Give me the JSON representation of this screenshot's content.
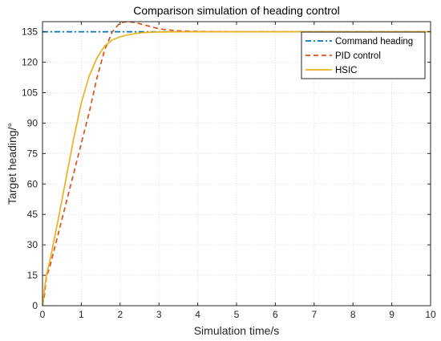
{
  "chart_data": {
    "type": "line",
    "title": "Comparison simulation of heading control",
    "xlabel": "Simulation time/s",
    "ylabel": "Target heading/°",
    "xlim": [
      0,
      10
    ],
    "ylim": [
      0,
      140
    ],
    "xticks": [
      0,
      1,
      2,
      3,
      4,
      5,
      6,
      7,
      8,
      9,
      10
    ],
    "yticks": [
      0,
      15,
      30,
      45,
      60,
      75,
      90,
      105,
      120,
      135
    ],
    "grid": true,
    "legend_position": "top-right",
    "series": [
      {
        "name": "Command heading",
        "color": "#0072BD",
        "style": "dash-dot",
        "x": [
          0,
          10
        ],
        "y": [
          135,
          135
        ]
      },
      {
        "name": "PID control",
        "color": "#D95319",
        "style": "dashed",
        "x": [
          0,
          0.05,
          0.1,
          0.2,
          0.4,
          0.6,
          0.8,
          1.0,
          1.2,
          1.4,
          1.6,
          1.8,
          2.0,
          2.2,
          2.4,
          2.6,
          2.8,
          3.0,
          3.2,
          3.5,
          4.0,
          5.0,
          10.0
        ],
        "y": [
          0,
          5,
          14,
          20,
          35,
          50,
          65,
          80,
          95,
          112,
          126,
          135,
          139.5,
          140,
          139.5,
          138.5,
          137.5,
          136.5,
          136,
          135.5,
          135.2,
          135,
          135
        ]
      },
      {
        "name": "HSIC",
        "color": "#EDB120",
        "style": "solid",
        "x": [
          0,
          0.05,
          0.1,
          0.2,
          0.4,
          0.6,
          0.8,
          1.0,
          1.2,
          1.4,
          1.6,
          1.8,
          2.0,
          2.2,
          2.4,
          2.6,
          2.8,
          3.0,
          3.5,
          4.0,
          5.0,
          10.0
        ],
        "y": [
          0,
          8,
          15,
          23,
          42,
          62,
          82,
          100,
          113,
          122,
          128,
          131,
          132.5,
          133.5,
          134.2,
          134.6,
          134.8,
          134.9,
          135,
          135,
          135,
          135
        ]
      }
    ]
  }
}
